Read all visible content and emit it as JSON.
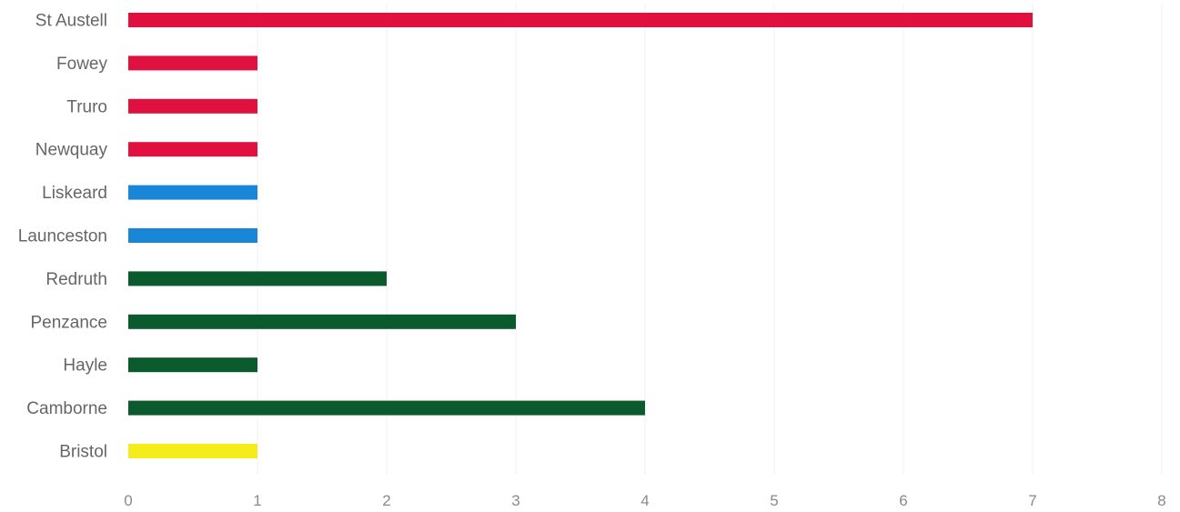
{
  "chart_data": {
    "type": "bar",
    "orientation": "horizontal",
    "categories": [
      "St Austell",
      "Fowey",
      "Truro",
      "Newquay",
      "Liskeard",
      "Launceston",
      "Redruth",
      "Penzance",
      "Hayle",
      "Camborne",
      "Bristol"
    ],
    "values": [
      7,
      1,
      1,
      1,
      1,
      1,
      2,
      3,
      1,
      4,
      1
    ],
    "bar_colors": [
      "#e0103f",
      "#e0103f",
      "#e0103f",
      "#e0103f",
      "#1a86d8",
      "#1a86d8",
      "#0b5a2e",
      "#0b5a2e",
      "#0b5a2e",
      "#0b5a2e",
      "#f5ec1b"
    ],
    "x_ticks": [
      "0",
      "1",
      "2",
      "3",
      "4",
      "5",
      "6",
      "7",
      "8"
    ],
    "xlim": [
      0,
      8
    ],
    "title": "",
    "xlabel": "",
    "ylabel": "",
    "grid": true,
    "legend": "none"
  }
}
